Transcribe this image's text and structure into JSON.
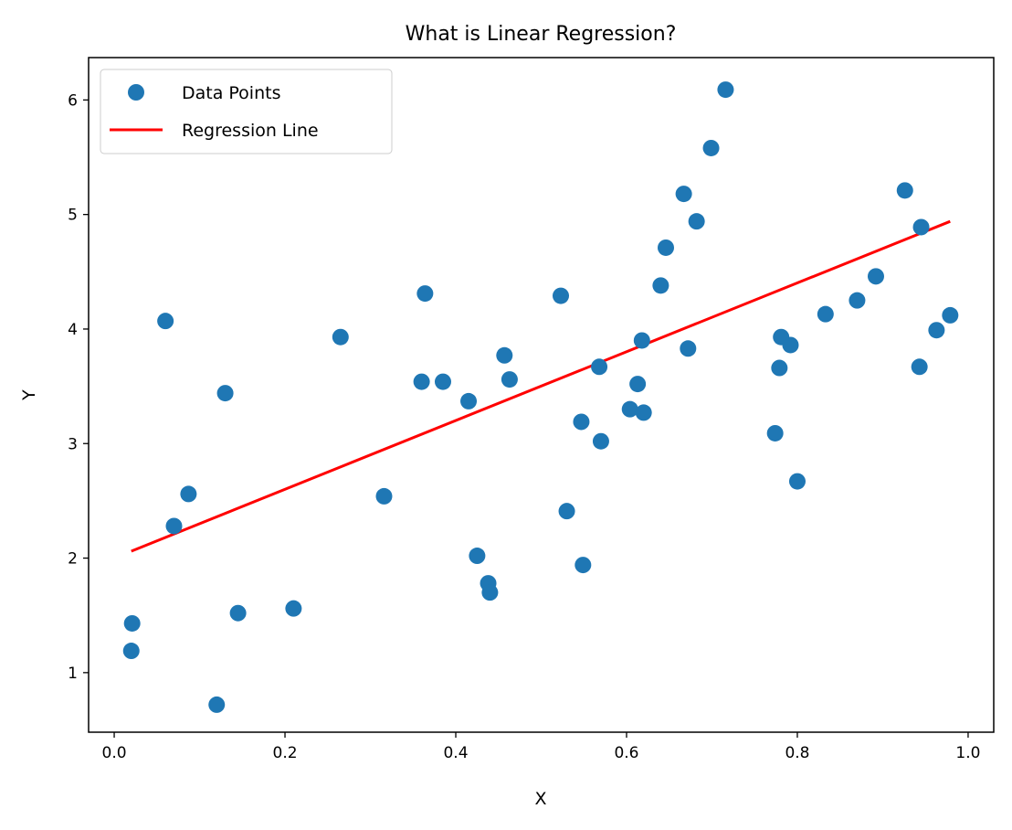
{
  "chart_data": {
    "type": "scatter",
    "title": "What is Linear Regression?",
    "xlabel": "X",
    "ylabel": "Y",
    "xlim": [
      -0.03,
      1.03
    ],
    "ylim": [
      0.48,
      6.37
    ],
    "xticks": [
      "0.0",
      "0.2",
      "0.4",
      "0.6",
      "0.8",
      "1.0"
    ],
    "yticks": [
      "1",
      "2",
      "3",
      "4",
      "5",
      "6"
    ],
    "grid": false,
    "legend_position": "top-left",
    "series": [
      {
        "name": "Data Points",
        "kind": "scatter",
        "color": "#1f77b4",
        "points": [
          [
            0.02,
            1.19
          ],
          [
            0.021,
            1.43
          ],
          [
            0.06,
            4.07
          ],
          [
            0.07,
            2.28
          ],
          [
            0.087,
            2.56
          ],
          [
            0.12,
            0.72
          ],
          [
            0.13,
            3.44
          ],
          [
            0.145,
            1.52
          ],
          [
            0.21,
            1.56
          ],
          [
            0.265,
            3.93
          ],
          [
            0.316,
            2.54
          ],
          [
            0.36,
            3.54
          ],
          [
            0.364,
            4.31
          ],
          [
            0.385,
            3.54
          ],
          [
            0.415,
            3.37
          ],
          [
            0.425,
            2.02
          ],
          [
            0.438,
            1.78
          ],
          [
            0.44,
            1.7
          ],
          [
            0.457,
            3.77
          ],
          [
            0.463,
            3.56
          ],
          [
            0.523,
            4.29
          ],
          [
            0.53,
            2.41
          ],
          [
            0.547,
            3.19
          ],
          [
            0.549,
            1.94
          ],
          [
            0.568,
            3.67
          ],
          [
            0.57,
            3.02
          ],
          [
            0.604,
            3.3
          ],
          [
            0.613,
            3.52
          ],
          [
            0.618,
            3.9
          ],
          [
            0.62,
            3.27
          ],
          [
            0.64,
            4.38
          ],
          [
            0.646,
            4.71
          ],
          [
            0.667,
            5.18
          ],
          [
            0.672,
            3.83
          ],
          [
            0.682,
            4.94
          ],
          [
            0.699,
            5.58
          ],
          [
            0.716,
            6.09
          ],
          [
            0.774,
            3.09
          ],
          [
            0.779,
            3.66
          ],
          [
            0.781,
            3.93
          ],
          [
            0.792,
            3.86
          ],
          [
            0.8,
            2.67
          ],
          [
            0.833,
            4.13
          ],
          [
            0.87,
            4.25
          ],
          [
            0.892,
            4.46
          ],
          [
            0.926,
            5.21
          ],
          [
            0.943,
            3.67
          ],
          [
            0.945,
            4.89
          ],
          [
            0.963,
            3.99
          ],
          [
            0.979,
            4.12
          ]
        ]
      },
      {
        "name": "Regression Line",
        "kind": "line",
        "color": "#ff0000",
        "x": [
          0.02,
          0.979
        ],
        "y": [
          2.06,
          4.94
        ]
      }
    ]
  }
}
